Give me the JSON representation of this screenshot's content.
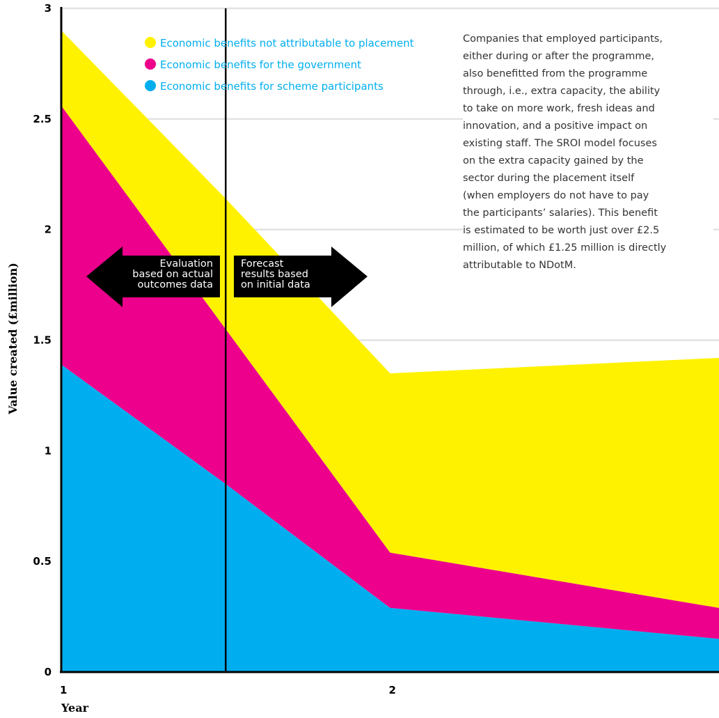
{
  "chart_data": {
    "type": "area",
    "stacked": true,
    "x": [
      1,
      1.5,
      2,
      3
    ],
    "xticks": [
      "1",
      "2"
    ],
    "xlabel": "Year",
    "ylabel": "Value created (£million)",
    "yticks": [
      "0",
      "0.5",
      "1",
      "1.5",
      "2",
      "2.5",
      "3"
    ],
    "ylim": [
      0,
      3
    ],
    "xlim": [
      1,
      3
    ],
    "grid": "horizontal",
    "legend_position": "top-left",
    "series": [
      {
        "name": "Economic benefits for scheme participants",
        "color": "#00aeef",
        "values": [
          1.39,
          0.85,
          0.29,
          0.15
        ]
      },
      {
        "name": "Economic benefits for the government",
        "color": "#ec008c",
        "values": [
          1.17,
          0.7,
          0.25,
          0.14
        ]
      },
      {
        "name": "Economic benefits not attributable to placement",
        "color": "#fff200",
        "values": [
          0.34,
          0.59,
          0.81,
          1.13
        ]
      }
    ],
    "legend_order": [
      2,
      1,
      0
    ],
    "divider_x": 1.5,
    "arrows": {
      "left": [
        "Evaluation",
        "based on actual",
        "outcomes data"
      ],
      "right": [
        "Forecast",
        "results based",
        "on initial data"
      ]
    },
    "annotation": "Companies that employed participants,\neither during or after the programme,\nalso benefitted from the programme\nthrough, i.e., extra capacity, the ability\nto take on more work, fresh ideas and\ninnovation, and a positive impact on\nexisting staff. The SROI model focuses\non the extra capacity gained by the\nsector during the placement itself\n(when employers do not have to pay\nthe participants’ salaries). This benefit\nis estimated to be worth just over £2.5\nmillion, of which £1.25 million is directly\nattributable to NDotM."
  }
}
